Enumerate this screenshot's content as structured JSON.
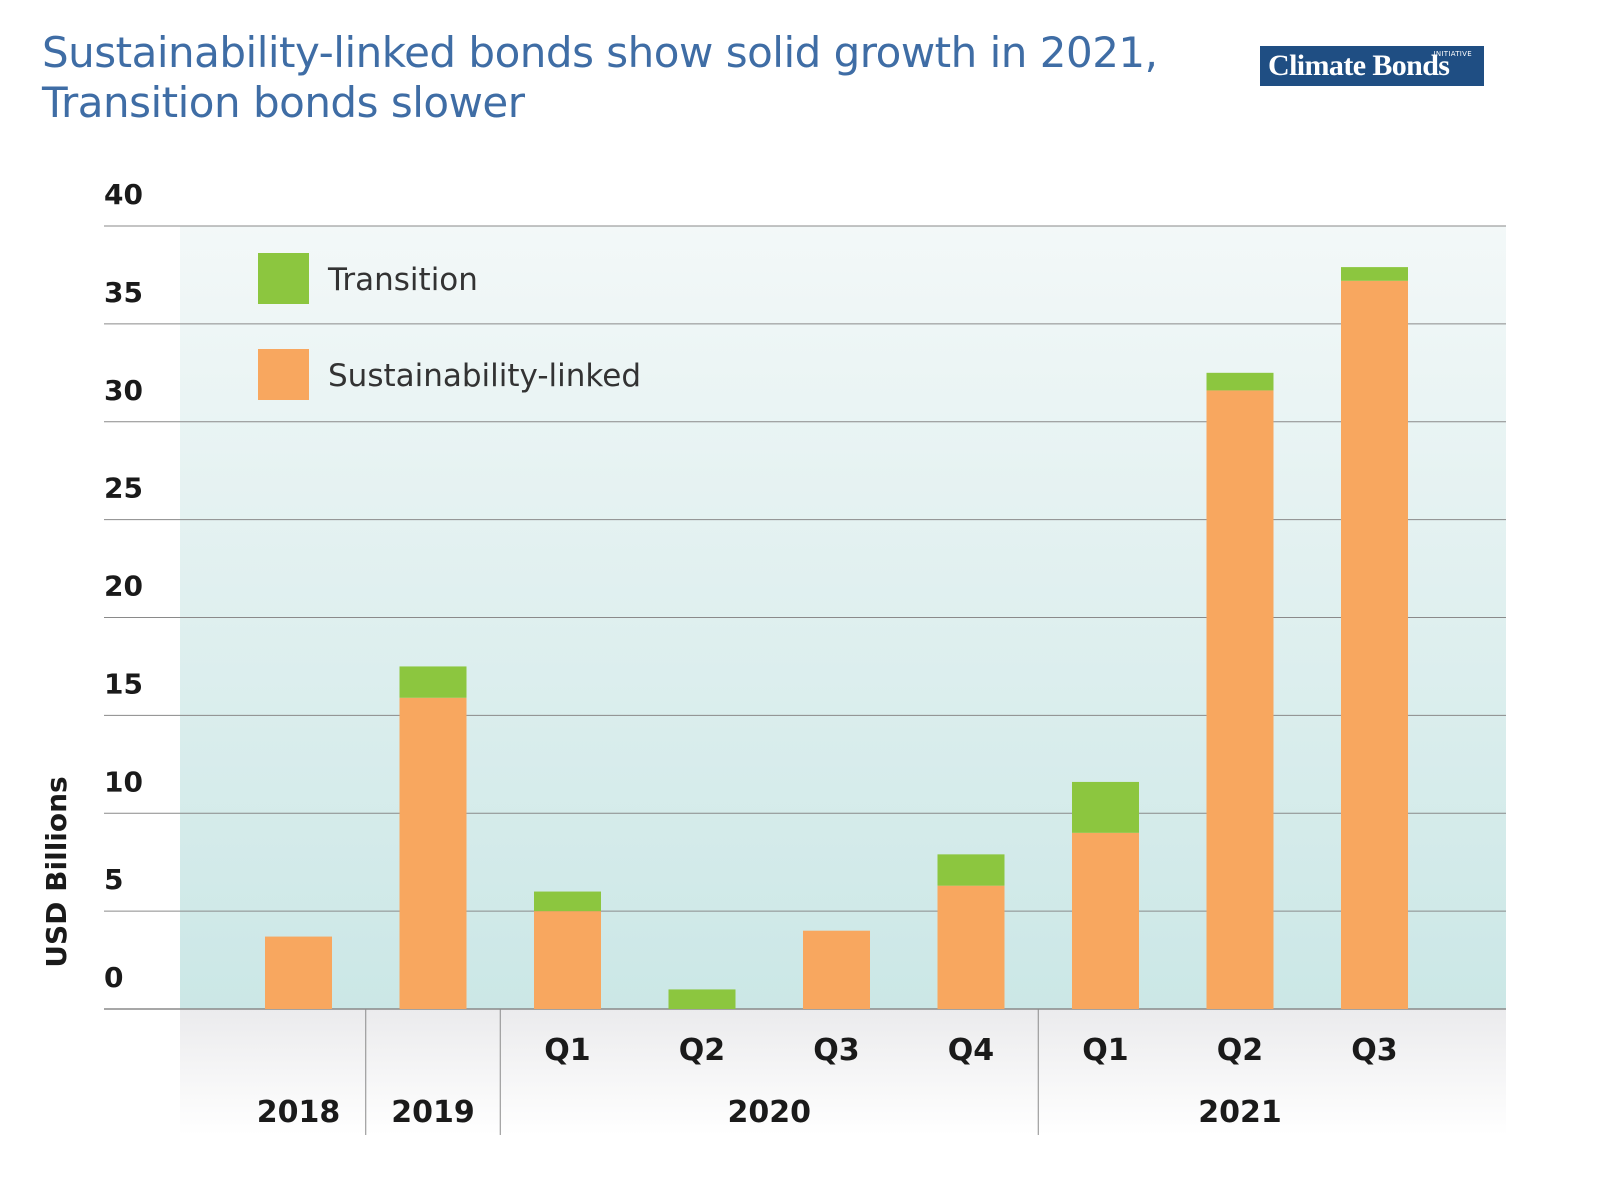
{
  "header": {
    "title_line1": "Sustainability-linked bonds show solid growth in 2021,",
    "title_line2": "Transition bonds slower",
    "logo_text": "Climate Bonds",
    "logo_superscript": "INITIATIVE"
  },
  "colors": {
    "transition": "#8cc63f",
    "sustainability_linked": "#f8a75f",
    "title": "#3f6da5",
    "logo_bg": "#1f4e83",
    "plot_bg_top": "#f3f8f8",
    "plot_bg_bottom": "#cbe7e6",
    "xaxis_bg_top": "#ebebed",
    "xaxis_bg_bottom": "#ffffff",
    "grid": "#8a8a8a"
  },
  "chart_data": {
    "type": "bar",
    "stacked": true,
    "categories": [
      "2018",
      "2019",
      "Q1",
      "Q2",
      "Q3",
      "Q4",
      "Q1",
      "Q2",
      "Q3"
    ],
    "groups": [
      {
        "label": "2018",
        "members": [
          0
        ]
      },
      {
        "label": "2019",
        "members": [
          1
        ]
      },
      {
        "label": "2020",
        "members": [
          2,
          3,
          4,
          5
        ]
      },
      {
        "label": "2021",
        "members": [
          6,
          7,
          8
        ]
      }
    ],
    "series": [
      {
        "name": "Sustainability-linked",
        "color": "#f8a75f",
        "values": [
          3.7,
          15.9,
          5.0,
          0,
          4.0,
          6.3,
          9.0,
          31.6,
          37.2
        ]
      },
      {
        "name": "Transition",
        "color": "#8cc63f",
        "values": [
          0,
          1.6,
          1.0,
          1.0,
          0,
          1.6,
          2.6,
          0.9,
          0.7
        ]
      }
    ],
    "legend": [
      "Transition",
      "Sustainability-linked"
    ],
    "legend_position": "top-left",
    "ylabel": "USD Billions",
    "yticks": [
      0,
      5,
      10,
      15,
      20,
      25,
      30,
      35,
      40
    ],
    "ylim": [
      0,
      40
    ],
    "grid": true
  }
}
